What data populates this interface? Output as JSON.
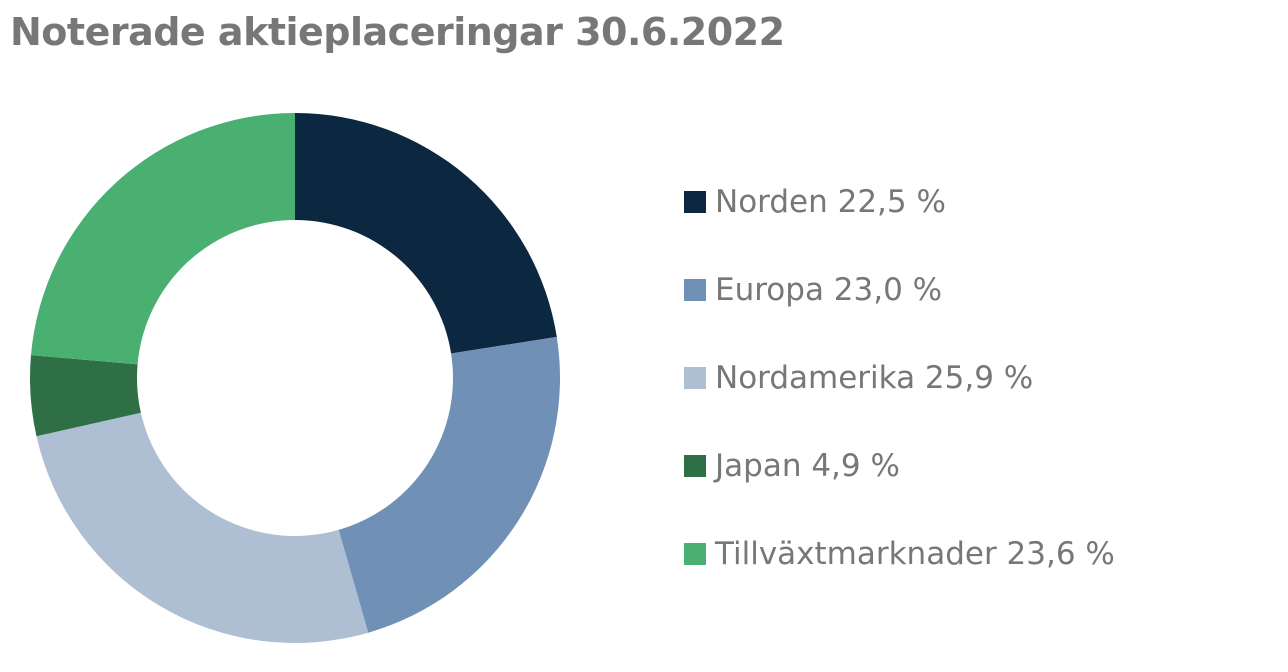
{
  "chart_data": {
    "type": "pie",
    "variant": "donut",
    "title": "Noterade aktieplaceringar 30.6.2022",
    "legend_position": "right",
    "slices": [
      {
        "name": "Norden",
        "value": 22.5,
        "label": "Norden 22,5 %",
        "color": "#0c2840"
      },
      {
        "name": "Europa",
        "value": 23.0,
        "label": "Europa 23,0 %",
        "color": "#7091b5"
      },
      {
        "name": "Nordamerika",
        "value": 25.9,
        "label": "Nordamerika 25,9 %",
        "color": "#aebfd4"
      },
      {
        "name": "Japan",
        "value": 4.9,
        "label": "Japan 4,9 %",
        "color": "#2e6f45"
      },
      {
        "name": "Tillväxtmarknader",
        "value": 23.6,
        "label": "Tillväxtmarknader 23,6 %",
        "color": "#4ab072"
      }
    ]
  }
}
